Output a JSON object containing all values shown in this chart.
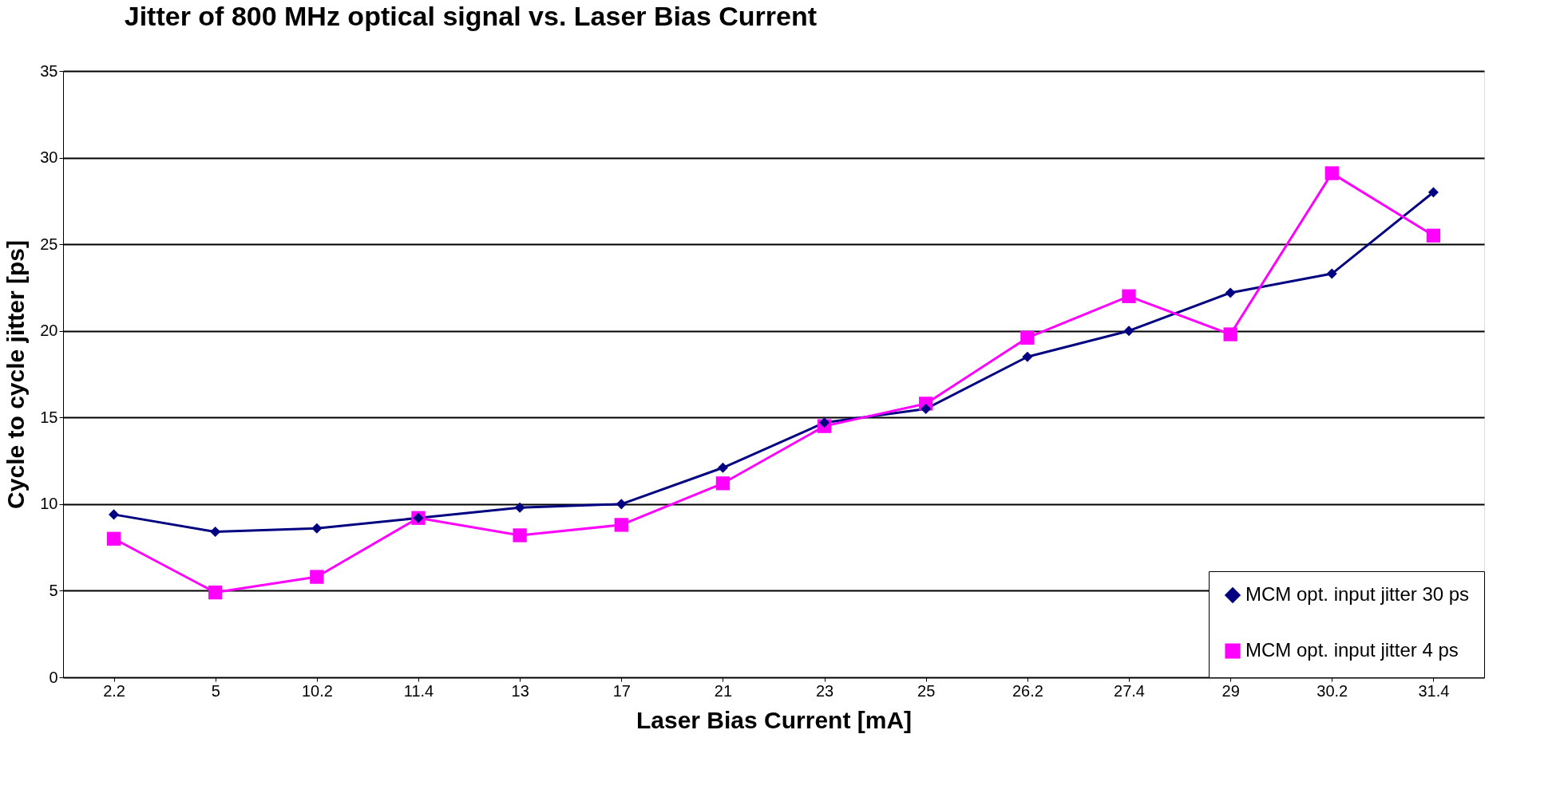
{
  "chart_data": {
    "type": "line",
    "title": "Jitter of 800 MHz optical signal vs. Laser Bias Current",
    "xlabel": "Laser Bias Current [mA]",
    "ylabel": "Cycle to cycle jitter [ps]",
    "categories": [
      "2.2",
      "5",
      "10.2",
      "11.4",
      "13",
      "17",
      "21",
      "23",
      "25",
      "26.2",
      "27.4",
      "29",
      "30.2",
      "31.4"
    ],
    "series": [
      {
        "name": "MCM opt. input jitter 30 ps",
        "color": "#000080",
        "marker": "diamond",
        "values": [
          9.4,
          8.4,
          8.6,
          9.2,
          9.8,
          10.0,
          12.1,
          14.7,
          15.5,
          18.5,
          20.0,
          22.2,
          23.3,
          28.0
        ]
      },
      {
        "name": "MCM opt. input jitter 4 ps",
        "color": "#ff00ff",
        "marker": "square",
        "values": [
          8.0,
          4.9,
          5.8,
          9.2,
          8.2,
          8.8,
          11.2,
          14.5,
          15.8,
          19.6,
          22.0,
          19.8,
          29.1,
          25.5
        ]
      }
    ],
    "ylim": [
      0,
      35
    ],
    "yticks": [
      0,
      5,
      10,
      15,
      20,
      25,
      30,
      35
    ],
    "grid": "y",
    "legend": "bottom right"
  }
}
